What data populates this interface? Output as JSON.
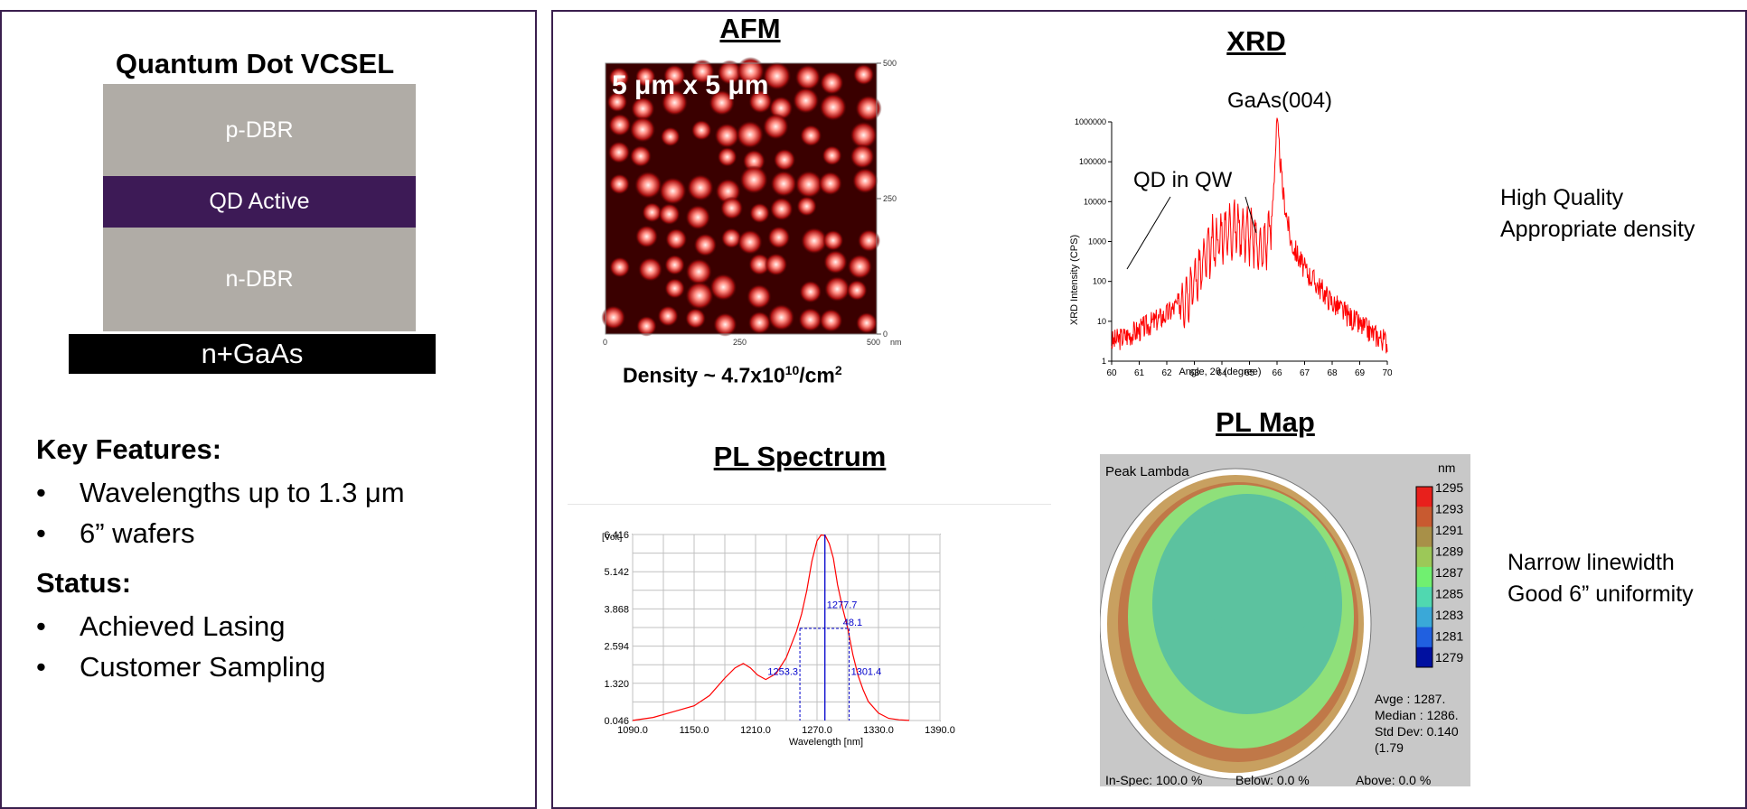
{
  "left_panel": {
    "stack_title": "Quantum Dot VCSEL",
    "layers": {
      "p_dbr": "p-DBR",
      "qd_active": "QD Active",
      "n_dbr": "n-DBR",
      "substrate": "n+GaAs"
    },
    "key_features_title": "Key Features:",
    "key_features": [
      "Wavelengths up to 1.3 μm",
      "6” wafers"
    ],
    "status_title": "Status:",
    "status_items": [
      "Achieved Lasing",
      "Customer Sampling"
    ]
  },
  "afm": {
    "title": "AFM",
    "scale_label": "5 μm x 5 μm",
    "density_prefix": "Density ~ 4.7x10",
    "density_exp": "10",
    "density_unit": "/cm",
    "density_unit_exp": "2",
    "x_ticks": [
      "0",
      "250",
      "500"
    ],
    "x_unit": "nm",
    "y_ticks": [
      "500",
      "250",
      "0"
    ]
  },
  "xrd": {
    "title": "XRD",
    "peak_label": "GaAs(004)",
    "qd_label": "QD in QW",
    "ylabel": "XRD Intensity (CPS)",
    "xlabel": "Angle, 2θ (degree)",
    "note_line1": "High Quality",
    "note_line2": "Appropriate density"
  },
  "pl_spectrum": {
    "title": "PL Spectrum",
    "y_unit": "[Volt]",
    "xlabel": "Wavelength [nm]",
    "peak_label": "1277.7",
    "fwhm_label": "48.1",
    "left_label": "1253.3",
    "right_label": "1301.4"
  },
  "pl_map": {
    "title": "PL Map",
    "map_label": "Peak Lambda",
    "unit": "nm",
    "scale_labels": [
      "1295",
      "1293",
      "1291",
      "1289",
      "1287",
      "1285",
      "1283",
      "1281",
      "1279"
    ],
    "stats": [
      "Avge   : 1287.",
      "Median : 1286.",
      "Std Dev: 0.140",
      "(1.79"
    ],
    "bottom_text": [
      "In-Spec: 100.0 %",
      "Below:   0.0 %",
      "Above:   0.0 %"
    ],
    "note_line1": "Narrow linewidth",
    "note_line2": "Good 6” uniformity"
  },
  "chart_data": [
    {
      "type": "line",
      "title": "PL Spectrum",
      "xlabel": "Wavelength [nm]",
      "ylabel": "[Volt]",
      "xlim": [
        1090,
        1390
      ],
      "ylim": [
        0.046,
        6.416
      ],
      "x_ticks": [
        1090,
        1150,
        1210,
        1270,
        1330,
        1390
      ],
      "y_ticks": [
        0.046,
        1.32,
        2.594,
        3.868,
        5.142,
        6.416
      ],
      "x": [
        1090,
        1110,
        1130,
        1150,
        1165,
        1180,
        1190,
        1198,
        1205,
        1212,
        1220,
        1230,
        1240,
        1250,
        1255,
        1260,
        1265,
        1270,
        1274,
        1278,
        1282,
        1286,
        1290,
        1295,
        1300,
        1305,
        1310,
        1315,
        1320,
        1330,
        1340,
        1350,
        1360
      ],
      "y": [
        0.05,
        0.15,
        0.35,
        0.55,
        0.9,
        1.5,
        1.85,
        2.0,
        1.85,
        1.6,
        1.45,
        1.65,
        2.2,
        3.1,
        3.7,
        4.5,
        5.5,
        6.2,
        6.4,
        6.38,
        6.1,
        5.6,
        4.7,
        3.9,
        3.2,
        2.3,
        1.6,
        1.1,
        0.7,
        0.3,
        0.12,
        0.07,
        0.05
      ],
      "markers": {
        "peak": 1277.7,
        "fwhm": 48.1,
        "left": 1253.3,
        "right": 1301.4
      }
    },
    {
      "type": "line",
      "title": "XRD",
      "xlabel": "Angle, 2θ (degree)",
      "ylabel": "XRD Intensity (CPS)",
      "xlim": [
        60,
        70
      ],
      "ylim": [
        1,
        1000000
      ],
      "y_scale": "log",
      "x_ticks": [
        60,
        61,
        62,
        63,
        64,
        65,
        66,
        67,
        68,
        69,
        70
      ],
      "y_ticks": [
        "1",
        "10",
        "100",
        "1000",
        "10000",
        "100000",
        "1000000"
      ],
      "x": [
        60,
        61,
        62,
        62.5,
        63,
        63.5,
        64,
        64.5,
        65,
        65.5,
        65.8,
        66,
        66.2,
        66.5,
        67,
        68,
        69,
        70
      ],
      "y": [
        3,
        6,
        15,
        30,
        100,
        500,
        1500,
        2500,
        1500,
        600,
        3000,
        1000000,
        20000,
        1000,
        200,
        30,
        8,
        3
      ],
      "annotations": [
        "GaAs(004)",
        "QD in QW"
      ]
    }
  ]
}
